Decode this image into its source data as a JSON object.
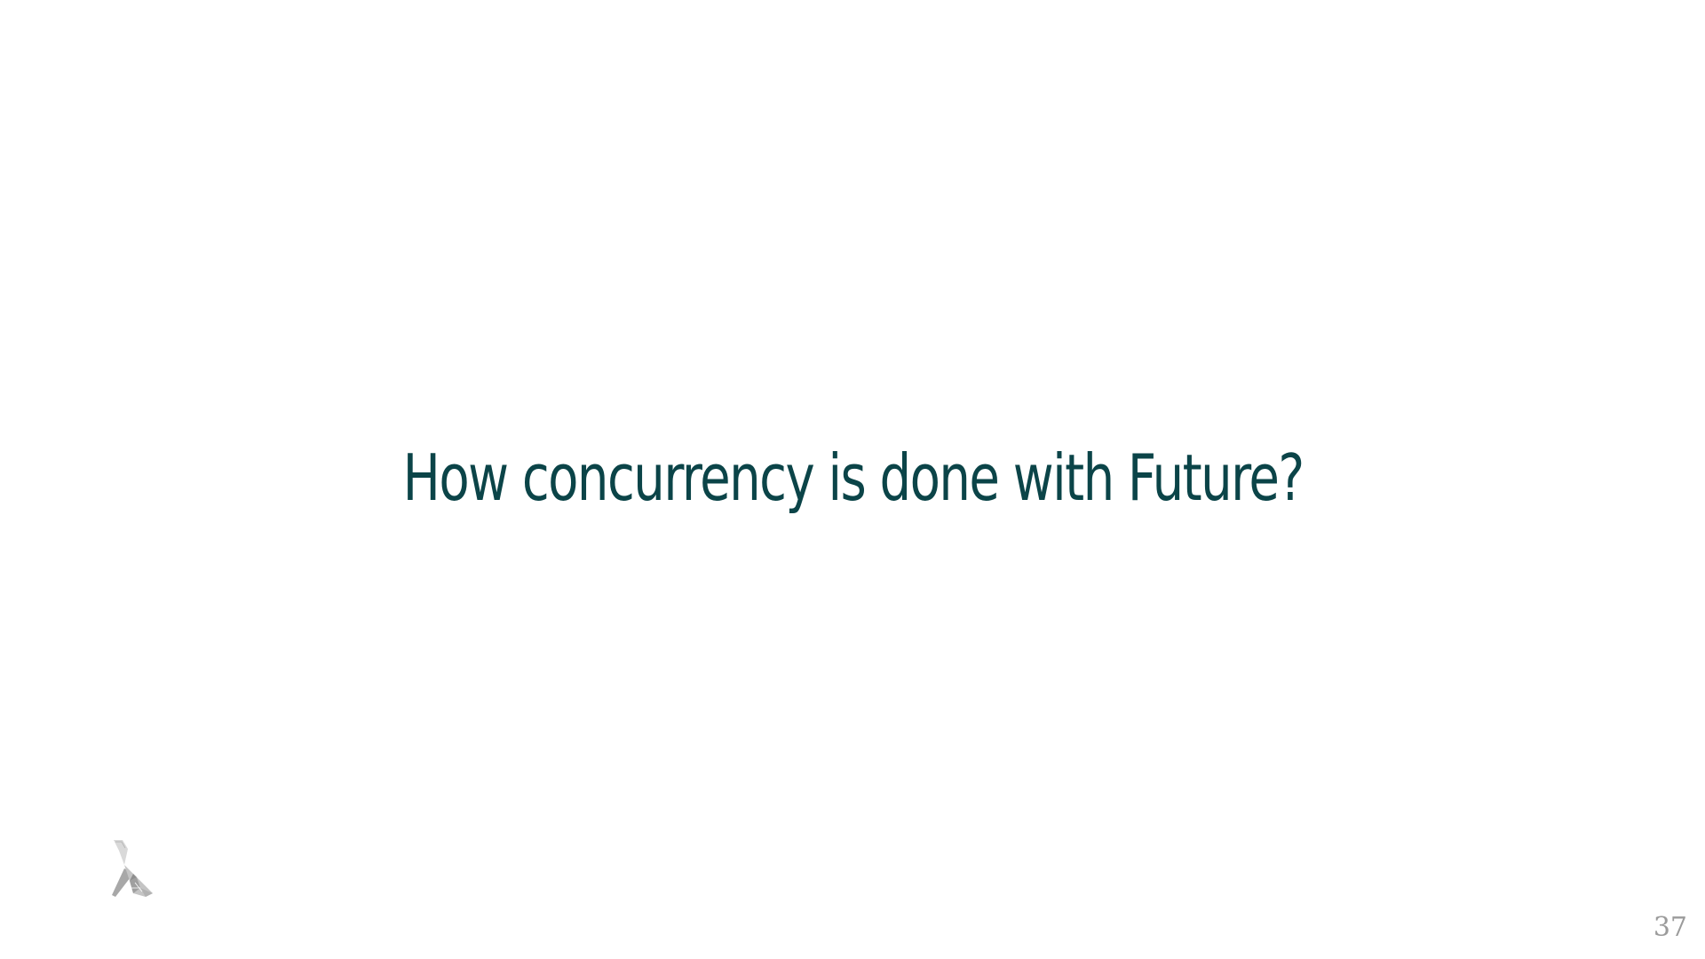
{
  "slide": {
    "title": "How concurrency is done with Future?",
    "page_number": "37",
    "logo_icon": "lambda-logo-icon"
  },
  "colors": {
    "title": "#0b4448",
    "page_number": "#9b9b9b",
    "background": "#ffffff"
  }
}
